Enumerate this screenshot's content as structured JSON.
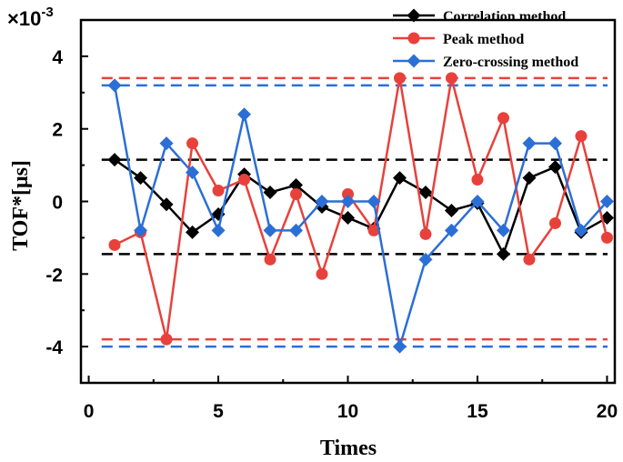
{
  "chart_data": {
    "type": "line",
    "xlabel": "Times",
    "ylabel": "TOF*[μs]",
    "y_multiplier": "×10",
    "y_multiplier_exp": "-3",
    "xlim": [
      -0.3,
      20.3
    ],
    "ylim": [
      -5,
      5
    ],
    "xticks": [
      0,
      5,
      10,
      15,
      20
    ],
    "yticks": [
      -4,
      -2,
      0,
      2,
      4
    ],
    "grid": false,
    "legend_position": "top-right",
    "x": [
      1,
      2,
      3,
      4,
      5,
      6,
      7,
      8,
      9,
      10,
      11,
      12,
      13,
      14,
      15,
      16,
      17,
      18,
      19,
      20
    ],
    "series": [
      {
        "name": "Correlation method",
        "color": "#000000",
        "marker": "diamond",
        "values": [
          1.15,
          0.65,
          -0.08,
          -0.85,
          -0.35,
          0.75,
          0.25,
          0.45,
          -0.15,
          -0.45,
          -0.75,
          0.65,
          0.25,
          -0.25,
          -0.05,
          -1.45,
          0.65,
          0.95,
          -0.85,
          -0.45
        ]
      },
      {
        "name": "Peak method",
        "color": "#e8413b",
        "marker": "circle",
        "values": [
          -1.2,
          -0.85,
          -3.8,
          1.6,
          0.3,
          0.6,
          -1.6,
          0.2,
          -2.0,
          0.2,
          -0.8,
          3.4,
          -0.9,
          3.4,
          0.6,
          2.3,
          -1.6,
          -0.6,
          1.8,
          -1.0
        ]
      },
      {
        "name": "Zero-crossing method",
        "color": "#2b6fd6",
        "marker": "diamond",
        "values": [
          3.2,
          -0.8,
          1.6,
          0.8,
          -0.8,
          2.4,
          -0.8,
          -0.8,
          0.0,
          0.0,
          0.0,
          -4.0,
          -1.6,
          -0.8,
          0.0,
          -0.8,
          1.6,
          1.6,
          -0.8,
          0.0
        ]
      }
    ],
    "reference_lines": [
      {
        "color": "#000000",
        "values": [
          1.15,
          -1.45
        ]
      },
      {
        "color": "#e8413b",
        "values": [
          3.4,
          -3.8
        ]
      },
      {
        "color": "#2b6fd6",
        "values": [
          3.2,
          -4.0
        ]
      }
    ]
  }
}
